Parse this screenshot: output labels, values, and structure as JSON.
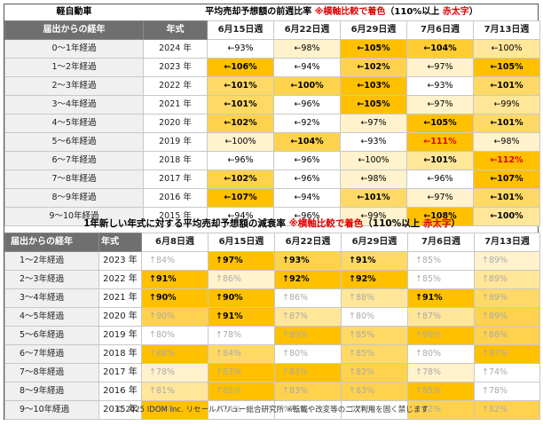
{
  "top": {
    "left_title": "軽自動車",
    "title_main": "平均売却予想額の前週比率 ",
    "title_note_red": "※横軸比較で着色",
    "title_mid": "（110%以上 ",
    "title_red2": "赤太字",
    "title_end": "）",
    "col_age": "届出からの経年",
    "col_year": "年式",
    "dates": [
      "6月15日週",
      "6月22日週",
      "6月29日週",
      "7月6日週",
      "7月13日週"
    ],
    "rows": [
      {
        "age": "0～1年経過",
        "year": "2024 年",
        "cells": [
          {
            "t": "←93%",
            "c": "#ffffff",
            "s": ""
          },
          {
            "t": "←98%",
            "c": "#fff2cc",
            "s": ""
          },
          {
            "t": "←105%",
            "c": "#ffc000",
            "s": "bold"
          },
          {
            "t": "←104%",
            "c": "#ffcd33",
            "s": "bold"
          },
          {
            "t": "←100%",
            "c": "#ffe699",
            "s": ""
          }
        ]
      },
      {
        "age": "1～2年経過",
        "year": "2023 年",
        "cells": [
          {
            "t": "←106%",
            "c": "#ffc000",
            "s": "bold"
          },
          {
            "t": "←94%",
            "c": "#ffffff",
            "s": ""
          },
          {
            "t": "←102%",
            "c": "#ffd24d",
            "s": "bold"
          },
          {
            "t": "←97%",
            "c": "#fff2cc",
            "s": ""
          },
          {
            "t": "←105%",
            "c": "#ffc000",
            "s": "bold"
          }
        ]
      },
      {
        "age": "2～3年経過",
        "year": "2022 年",
        "cells": [
          {
            "t": "←101%",
            "c": "#ffd966",
            "s": "bold"
          },
          {
            "t": "←100%",
            "c": "#ffd24d",
            "s": "bold"
          },
          {
            "t": "←103%",
            "c": "#ffc000",
            "s": "bold"
          },
          {
            "t": "←93%",
            "c": "#ffffff",
            "s": ""
          },
          {
            "t": "←101%",
            "c": "#ffd966",
            "s": "bold"
          }
        ]
      },
      {
        "age": "3～4年経過",
        "year": "2021 年",
        "cells": [
          {
            "t": "←101%",
            "c": "#ffd966",
            "s": "bold"
          },
          {
            "t": "←96%",
            "c": "#ffffff",
            "s": ""
          },
          {
            "t": "←105%",
            "c": "#ffc000",
            "s": "bold"
          },
          {
            "t": "←97%",
            "c": "#fff2cc",
            "s": ""
          },
          {
            "t": "←99%",
            "c": "#ffe699",
            "s": ""
          }
        ]
      },
      {
        "age": "4～5年経過",
        "year": "2020 年",
        "cells": [
          {
            "t": "←102%",
            "c": "#ffd24d",
            "s": "bold"
          },
          {
            "t": "←92%",
            "c": "#ffffff",
            "s": ""
          },
          {
            "t": "←97%",
            "c": "#fff2cc",
            "s": ""
          },
          {
            "t": "←105%",
            "c": "#ffc000",
            "s": "bold"
          },
          {
            "t": "←101%",
            "c": "#ffd966",
            "s": "bold"
          }
        ]
      },
      {
        "age": "5～6年経過",
        "year": "2019 年",
        "cells": [
          {
            "t": "←100%",
            "c": "#fff2cc",
            "s": ""
          },
          {
            "t": "←104%",
            "c": "#ffd24d",
            "s": "bold"
          },
          {
            "t": "←93%",
            "c": "#ffffff",
            "s": ""
          },
          {
            "t": "←111%",
            "c": "#ffc000",
            "s": "red"
          },
          {
            "t": "←98%",
            "c": "#fff2cc",
            "s": ""
          }
        ]
      },
      {
        "age": "6～7年経過",
        "year": "2018 年",
        "cells": [
          {
            "t": "←96%",
            "c": "#ffffff",
            "s": ""
          },
          {
            "t": "←96%",
            "c": "#ffffff",
            "s": ""
          },
          {
            "t": "←100%",
            "c": "#fff2cc",
            "s": ""
          },
          {
            "t": "←101%",
            "c": "#ffe699",
            "s": "bold"
          },
          {
            "t": "←112%",
            "c": "#ffc000",
            "s": "red"
          }
        ]
      },
      {
        "age": "7～8年経過",
        "year": "2017 年",
        "cells": [
          {
            "t": "←102%",
            "c": "#ffd24d",
            "s": "bold"
          },
          {
            "t": "←96%",
            "c": "#ffffff",
            "s": ""
          },
          {
            "t": "←98%",
            "c": "#fff2cc",
            "s": ""
          },
          {
            "t": "←96%",
            "c": "#ffffff",
            "s": ""
          },
          {
            "t": "←107%",
            "c": "#ffc000",
            "s": "bold"
          }
        ]
      },
      {
        "age": "8～9年経過",
        "year": "2016 年",
        "cells": [
          {
            "t": "←107%",
            "c": "#ffc000",
            "s": "bold"
          },
          {
            "t": "←94%",
            "c": "#ffffff",
            "s": ""
          },
          {
            "t": "←101%",
            "c": "#ffd966",
            "s": "bold"
          },
          {
            "t": "←97%",
            "c": "#fff2cc",
            "s": ""
          },
          {
            "t": "←101%",
            "c": "#ffd966",
            "s": "bold"
          }
        ]
      },
      {
        "age": "9～10年経過",
        "year": "2015 年",
        "cells": [
          {
            "t": "←94%",
            "c": "#ffffff",
            "s": ""
          },
          {
            "t": "←96%",
            "c": "#ffffff",
            "s": ""
          },
          {
            "t": "←99%",
            "c": "#fff2cc",
            "s": ""
          },
          {
            "t": "←108%",
            "c": "#ffc000",
            "s": "bold"
          },
          {
            "t": "←100%",
            "c": "#ffe699",
            "s": "bold"
          }
        ]
      }
    ]
  },
  "bottom": {
    "title_main": "1年新しい年式に対する平均売却予想額の減衰率 ",
    "title_note_red": "※横軸比較で着色",
    "title_mid": "（110%以上 ",
    "title_red2": "赤太字",
    "title_end": "）",
    "col_age": "届出からの経年",
    "col_year": "年式",
    "dates": [
      "6月8日週",
      "6月15日週",
      "6月22日週",
      "6月29日週",
      "7月6日週",
      "7月13日週"
    ],
    "rows": [
      {
        "age": "1～2年経過",
        "year": "2023 年",
        "cells": [
          {
            "t": "↑84%",
            "c": "#ffffff",
            "s": "dim"
          },
          {
            "t": "↑97%",
            "c": "#ffc000",
            "s": "bold"
          },
          {
            "t": "↑93%",
            "c": "#ffd24d",
            "s": "bold"
          },
          {
            "t": "↑91%",
            "c": "#ffd966",
            "s": "bold"
          },
          {
            "t": "↑85%",
            "c": "#ffffff",
            "s": "dim"
          },
          {
            "t": "↑89%",
            "c": "#fff2cc",
            "s": "dim"
          }
        ]
      },
      {
        "age": "2～3年経過",
        "year": "2022 年",
        "cells": [
          {
            "t": "↑91%",
            "c": "#ffc000",
            "s": "bold"
          },
          {
            "t": "↑86%",
            "c": "#fff2cc",
            "s": "dim"
          },
          {
            "t": "↑92%",
            "c": "#ffc000",
            "s": "bold"
          },
          {
            "t": "↑92%",
            "c": "#ffc000",
            "s": "bold"
          },
          {
            "t": "↑85%",
            "c": "#ffffff",
            "s": "dim"
          },
          {
            "t": "↑89%",
            "c": "#ffe699",
            "s": "dim"
          }
        ]
      },
      {
        "age": "3～4年経過",
        "year": "2021 年",
        "cells": [
          {
            "t": "↑90%",
            "c": "#ffc000",
            "s": "bold"
          },
          {
            "t": "↑90%",
            "c": "#ffc000",
            "s": "bold"
          },
          {
            "t": "↑86%",
            "c": "#ffffff",
            "s": "dim"
          },
          {
            "t": "↑88%",
            "c": "#ffe699",
            "s": "dim"
          },
          {
            "t": "↑91%",
            "c": "#ffc000",
            "s": "bold"
          },
          {
            "t": "↑89%",
            "c": "#ffd966",
            "s": "dim"
          }
        ]
      },
      {
        "age": "4～5年経過",
        "year": "2020 年",
        "cells": [
          {
            "t": "↑90%",
            "c": "#ffd24d",
            "s": "dim"
          },
          {
            "t": "↑91%",
            "c": "#ffc000",
            "s": "bold"
          },
          {
            "t": "↑87%",
            "c": "#ffe699",
            "s": "dim"
          },
          {
            "t": "↑80%",
            "c": "#ffffff",
            "s": "dim"
          },
          {
            "t": "↑87%",
            "c": "#ffe699",
            "s": "dim"
          },
          {
            "t": "↑89%",
            "c": "#ffd24d",
            "s": "dim"
          }
        ]
      },
      {
        "age": "5～6年経過",
        "year": "2019 年",
        "cells": [
          {
            "t": "↑80%",
            "c": "#ffffff",
            "s": "dim"
          },
          {
            "t": "↑78%",
            "c": "#ffffff",
            "s": "dim"
          },
          {
            "t": "↑89%",
            "c": "#ffc000",
            "s": "dim"
          },
          {
            "t": "↑85%",
            "c": "#ffd966",
            "s": "dim"
          },
          {
            "t": "↑90%",
            "c": "#ffc000",
            "s": "dim"
          },
          {
            "t": "↑88%",
            "c": "#ffd24d",
            "s": "dim"
          }
        ]
      },
      {
        "age": "6～7年経過",
        "year": "2018 年",
        "cells": [
          {
            "t": "↑88%",
            "c": "#ffc000",
            "s": "dim"
          },
          {
            "t": "↑84%",
            "c": "#ffd966",
            "s": "dim"
          },
          {
            "t": "↑80%",
            "c": "#ffffff",
            "s": "dim"
          },
          {
            "t": "↑85%",
            "c": "#ffd966",
            "s": "dim"
          },
          {
            "t": "↑80%",
            "c": "#ffffff",
            "s": "dim"
          },
          {
            "t": "↑87%",
            "c": "#ffc000",
            "s": "dim"
          }
        ]
      },
      {
        "age": "7～8年経過",
        "year": "2017 年",
        "cells": [
          {
            "t": "↑78%",
            "c": "#fff2cc",
            "s": "dim"
          },
          {
            "t": "↑83%",
            "c": "#ffc000",
            "s": "dim"
          },
          {
            "t": "↑83%",
            "c": "#ffc000",
            "s": "dim"
          },
          {
            "t": "↑82%",
            "c": "#ffd24d",
            "s": "dim"
          },
          {
            "t": "↑78%",
            "c": "#fff2cc",
            "s": "dim"
          },
          {
            "t": "↑74%",
            "c": "#ffffff",
            "s": "dim"
          }
        ]
      },
      {
        "age": "8～9年経過",
        "year": "2016 年",
        "cells": [
          {
            "t": "↑81%",
            "c": "#ffe699",
            "s": "dim"
          },
          {
            "t": "↑85%",
            "c": "#ffc000",
            "s": "dim"
          },
          {
            "t": "↑83%",
            "c": "#ffd24d",
            "s": "dim"
          },
          {
            "t": "↑83%",
            "c": "#ffd24d",
            "s": "dim"
          },
          {
            "t": "↑85%",
            "c": "#ffc000",
            "s": "dim"
          },
          {
            "t": "↑78%",
            "c": "#ffffff",
            "s": "dim"
          }
        ]
      },
      {
        "age": "9～10年経過",
        "year": "2015 年",
        "cells": [
          {
            "t": "↑84%",
            "c": "#ffc000",
            "s": "dim"
          },
          {
            "t": "↑74%",
            "c": "#ffffff",
            "s": "dim"
          },
          {
            "t": "↑75%",
            "c": "#ffffff",
            "s": "dim"
          },
          {
            "t": "↑74%",
            "c": "#ffffff",
            "s": "dim"
          },
          {
            "t": "↑82%",
            "c": "#ffd24d",
            "s": "dim"
          },
          {
            "t": "↑82%",
            "c": "#ffd24d",
            "s": "dim"
          }
        ]
      }
    ]
  },
  "footer": "© 2025 IDOM Inc. リセールバリュー総合研究所 ※転載や改変等の二次利用を固く禁じます"
}
